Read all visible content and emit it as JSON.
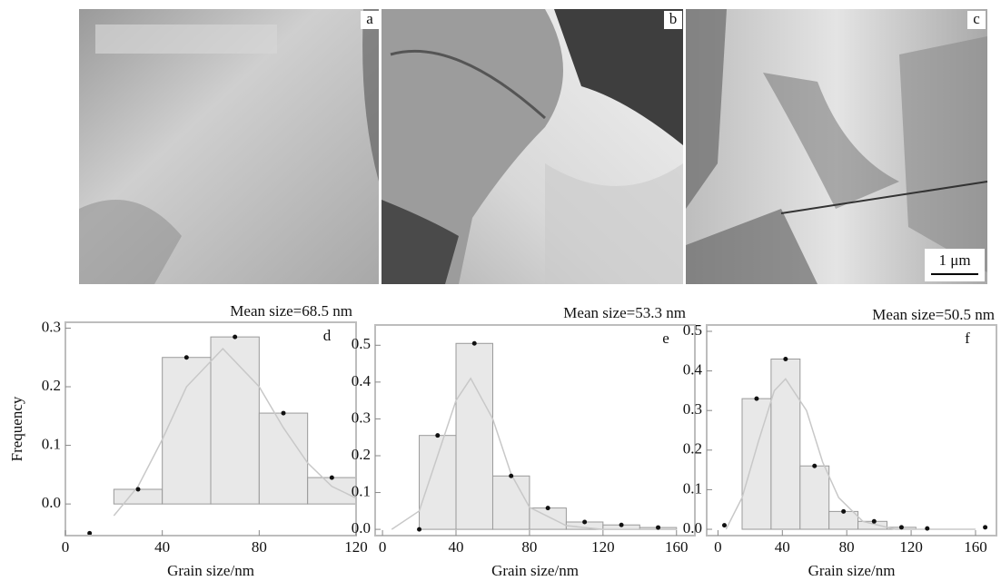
{
  "images": [
    {
      "label": "a"
    },
    {
      "label": "b"
    },
    {
      "label": "c"
    }
  ],
  "scale_bar": "1 μm",
  "chart_data": [
    {
      "type": "histogram",
      "title": "Mean size=68.5 nm",
      "label": "d",
      "x_label": "Grain size/nm",
      "y_label": "Frequency",
      "bins": [
        20,
        40,
        60,
        80,
        100,
        120
      ],
      "counts": [
        0.025,
        0.25,
        0.285,
        0.155,
        0.045
      ],
      "points": {
        "x": [
          10,
          30,
          50,
          70,
          90,
          110
        ],
        "y": [
          -0.05,
          0.025,
          0.25,
          0.285,
          0.155,
          0.045
        ]
      },
      "fit": {
        "x": [
          20,
          30,
          40,
          50,
          65,
          80,
          90,
          100,
          110,
          120
        ],
        "y": [
          -0.02,
          0.03,
          0.11,
          0.2,
          0.265,
          0.2,
          0.13,
          0.07,
          0.03,
          0.01
        ]
      },
      "xlim": [
        0,
        120
      ],
      "xticks": [
        0,
        40,
        80,
        120
      ],
      "ylim": [
        -0.054,
        0.31
      ],
      "yticks": [
        {
          "value": 0,
          "label": "0.0"
        },
        0.1,
        0.2,
        0.3
      ]
    },
    {
      "type": "histogram",
      "title": "Mean size=53.3 nm",
      "label": "e",
      "x_label": "Grain size/nm",
      "bins": [
        20,
        40,
        60,
        80,
        100,
        120,
        140,
        160
      ],
      "counts": [
        0.255,
        0.505,
        0.145,
        0.058,
        0.02,
        0.012,
        0.005
      ],
      "points": {
        "x": [
          20,
          30,
          50,
          70,
          90,
          110,
          130,
          150
        ],
        "y": [
          0,
          0.255,
          0.505,
          0.145,
          0.058,
          0.02,
          0.012,
          0.005
        ]
      },
      "fit": {
        "x": [
          5,
          20,
          30,
          40,
          48,
          60,
          70,
          80,
          100,
          120,
          160
        ],
        "y": [
          0,
          0.05,
          0.2,
          0.35,
          0.41,
          0.3,
          0.15,
          0.06,
          0.01,
          0,
          0
        ]
      },
      "xlim": [
        -4,
        170
      ],
      "xticks": [
        0,
        40,
        80,
        120,
        160
      ],
      "ylim": [
        -0.017,
        0.555
      ],
      "yticks": [
        {
          "value": 0,
          "label": "0.0"
        },
        0.1,
        0.2,
        0.3,
        0.4,
        0.5
      ]
    },
    {
      "type": "histogram",
      "title": "Mean size=50.5 nm",
      "label": "f",
      "x_label": "Grain size/nm",
      "bins": [
        15,
        33,
        51,
        69,
        87,
        105,
        123
      ],
      "counts": [
        0.33,
        0.43,
        0.16,
        0.045,
        0.02,
        0.005
      ],
      "points": {
        "x": [
          4,
          24,
          42,
          60,
          78,
          97,
          114,
          130,
          166
        ],
        "y": [
          0.01,
          0.33,
          0.43,
          0.16,
          0.045,
          0.02,
          0.005,
          0.002,
          0.005
        ]
      },
      "fit": {
        "x": [
          5,
          15,
          25,
          35,
          42,
          55,
          65,
          75,
          90,
          110,
          160
        ],
        "y": [
          0,
          0.08,
          0.22,
          0.35,
          0.38,
          0.3,
          0.17,
          0.08,
          0.02,
          0,
          0
        ]
      },
      "xlim": [
        -7,
        173
      ],
      "xticks": [
        0,
        40,
        80,
        120,
        160
      ],
      "ylim": [
        -0.016,
        0.516
      ],
      "yticks": [
        {
          "value": 0,
          "label": "0.0"
        },
        0.1,
        0.2,
        0.3,
        0.4,
        0.5
      ]
    }
  ]
}
